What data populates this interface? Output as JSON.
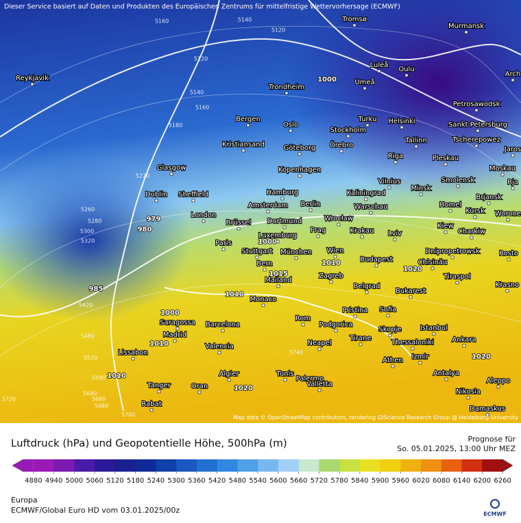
{
  "header": {
    "notice": "Dieser Service basiert auf Daten und Produkten des Europäischen Zentrums für mittelfristige Wettervorhersage (ECMWF)",
    "attribution": "Map data © OpenStreetMap contributors, rendering GIScience Research Group @ Heidelberg University"
  },
  "map": {
    "cities": [
      "Tromsø",
      "Murmansk",
      "Reykjavik",
      "Luleå",
      "Oulu",
      "Arch",
      "Trondheim",
      "Umeå",
      "Petrosawodsk",
      "Bergen",
      "Oslo",
      "Turku",
      "Helsinki",
      "Sankt Petersburg",
      "Stockholm",
      "Kristiansand",
      "Tallinn",
      "Tscherepowez",
      "Göteborg",
      "Örebro",
      "Jaros",
      "Riga",
      "Pleskau",
      "Glasgow",
      "Kopenhagen",
      "Moskau",
      "Vilnius",
      "Smolensk",
      "Rja",
      "Minsk",
      "Hamburg",
      "Dublin",
      "Sheffield",
      "Kaliningrad",
      "Brjansk",
      "Berlin",
      "Amsterdam",
      "Warschau",
      "Homel",
      "London",
      "Kursk",
      "Worone",
      "Wrocław",
      "Dortmund",
      "Brüssel",
      "Kiew",
      "Krakau",
      "Prag",
      "Charkiw",
      "Luxemburg",
      "Lviv",
      "Paris",
      "Wien",
      "Stuttgart",
      "München",
      "Dnipropetrowsk",
      "Budapest",
      "Rosto",
      "Chisinău",
      "Bern",
      "Tiraspol",
      "Krasno",
      "Mailand",
      "Zagreb",
      "Belgrad",
      "Bukarest",
      "Monaco",
      "Sofia",
      "Pristina",
      "Saragossa",
      "Barcelona",
      "Rom",
      "Podgorica",
      "Istanbul",
      "Skopje",
      "Madrid",
      "Tirane",
      "Thessaloniki",
      "Ankara",
      "Valencia",
      "Neapel",
      "Lissabon",
      "Izmir",
      "Athen",
      "Algier",
      "Tunis",
      "Palermo",
      "Antalya",
      "Aleppo",
      "Valletta",
      "Tanger",
      "Oran",
      "Nikosia",
      "Rabat",
      "Damaskus"
    ],
    "pressure_labels": [
      "1000",
      "1000",
      "1010",
      "1010",
      "1020",
      "1020",
      "1020",
      "1010",
      "985",
      "979",
      "980",
      "1000",
      "1010",
      "1015"
    ],
    "height_labels": [
      "5160",
      "5140",
      "5120",
      "5120",
      "5140",
      "5160",
      "5180",
      "5220",
      "5260",
      "5280",
      "5300",
      "5320",
      "5420",
      "5480",
      "5520",
      "5580",
      "5640",
      "5660",
      "5680",
      "5700",
      "5720",
      "5740"
    ]
  },
  "legend": {
    "title": "Luftdruck (hPa) und Geopotentielle Höhe, 500hPa (m)",
    "forecast_label": "Prognose für",
    "forecast_time": "So. 05.01.2025, 13:00 Uhr MEZ",
    "colorbar": {
      "ticks": [
        4880,
        4940,
        5000,
        5060,
        5120,
        5180,
        5240,
        5300,
        5360,
        5420,
        5480,
        5540,
        5600,
        5660,
        5720,
        5780,
        5840,
        5900,
        5960,
        6020,
        6080,
        6140,
        6200,
        6260
      ],
      "colors": [
        "#9a1ab8",
        "#7a1ab0",
        "#4a1aa8",
        "#2a1a98",
        "#1a2090",
        "#102a98",
        "#1040a8",
        "#1858c0",
        "#2070d0",
        "#3088e0",
        "#50a0e8",
        "#78b8f0",
        "#a0d0f8",
        "#c8e8d0",
        "#a8d870",
        "#c8e040",
        "#e8e020",
        "#f0d010",
        "#f0b010",
        "#f09010",
        "#e86010",
        "#d03010",
        "#a01010"
      ]
    }
  },
  "footer": {
    "region": "Europa",
    "model": "ECMWF/Global Euro HD vom  03.01.2025/00z",
    "logo": "ECMWF"
  }
}
